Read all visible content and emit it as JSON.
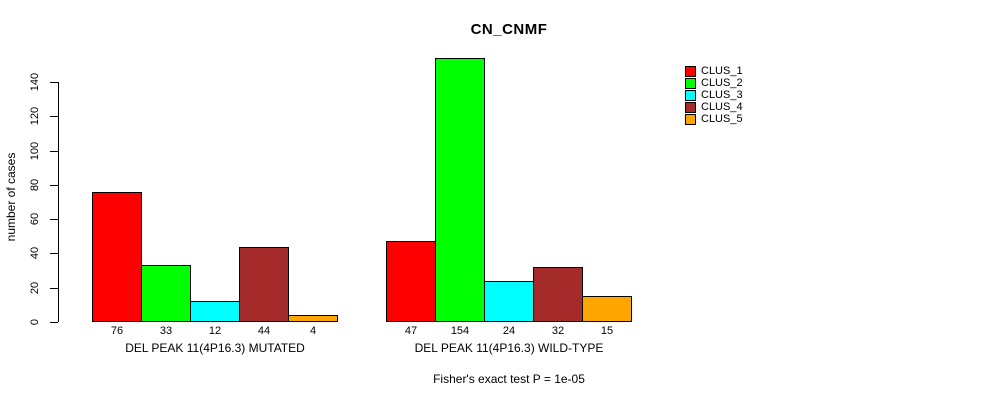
{
  "figure": {
    "title": "CN_CNMF",
    "footer": "Fisher's exact test P = 1e-05"
  },
  "chart_data": {
    "type": "bar",
    "title": "CN_CNMF",
    "xlabel": "",
    "ylabel": "number of cases",
    "ylim": [
      0,
      140
    ],
    "yticks": [
      0,
      20,
      40,
      60,
      80,
      100,
      120,
      140
    ],
    "grid": false,
    "legend_position": "top-right-outside",
    "annotation": "Fisher's exact test P = 1e-05",
    "categories": [
      "DEL PEAK 11(4P16.3) MUTATED",
      "DEL PEAK 11(4P16.3) WILD-TYPE"
    ],
    "series": [
      {
        "name": "CLUS_1",
        "color": "#FF0000",
        "values": [
          76,
          47
        ]
      },
      {
        "name": "CLUS_2",
        "color": "#00FF00",
        "values": [
          33,
          154
        ]
      },
      {
        "name": "CLUS_3",
        "color": "#00FFFF",
        "values": [
          12,
          24
        ]
      },
      {
        "name": "CLUS_4",
        "color": "#A52A2A",
        "values": [
          44,
          32
        ]
      },
      {
        "name": "CLUS_5",
        "color": "#FFA500",
        "values": [
          4,
          15
        ]
      }
    ],
    "bar_value_labels_shown": true,
    "colors": {
      "axis": "#000000",
      "background": "#FFFFFF",
      "text": "#000000"
    }
  }
}
